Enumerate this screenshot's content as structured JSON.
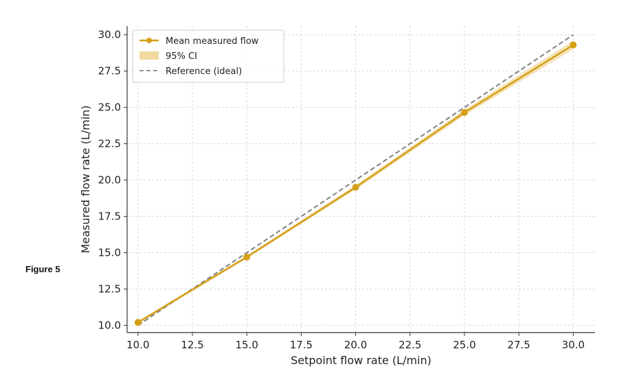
{
  "figure_label": "Figure 5",
  "chart_data": {
    "type": "line",
    "xlabel": "Setpoint flow rate (L/min)",
    "ylabel": "Measured flow rate (L/min)",
    "xlim": [
      9.5,
      31.0
    ],
    "ylim": [
      9.5,
      30.6
    ],
    "xticks": [
      "10.0",
      "12.5",
      "15.0",
      "17.5",
      "20.0",
      "22.5",
      "25.0",
      "27.5",
      "30.0"
    ],
    "yticks": [
      "10.0",
      "12.5",
      "15.0",
      "17.5",
      "20.0",
      "22.5",
      "25.0",
      "27.5",
      "30.0"
    ],
    "grid": true,
    "legend_position": "top-left",
    "series": [
      {
        "name": "Mean measured flow",
        "kind": "line-markers",
        "color": "#d4a017",
        "x": [
          10,
          15,
          20,
          25,
          30
        ],
        "y": [
          10.2,
          14.7,
          19.5,
          24.65,
          29.3
        ]
      },
      {
        "name": "95% CI",
        "kind": "band",
        "color": "#f1d9a0",
        "x": [
          10,
          15,
          20,
          25,
          30
        ],
        "lower": [
          10.1,
          14.6,
          19.35,
          24.45,
          29.0
        ],
        "upper": [
          10.3,
          14.8,
          19.65,
          24.85,
          29.6
        ]
      },
      {
        "name": "Reference (ideal)",
        "kind": "dashed",
        "color": "#808080",
        "x": [
          10,
          30
        ],
        "y": [
          10,
          30
        ]
      }
    ]
  }
}
